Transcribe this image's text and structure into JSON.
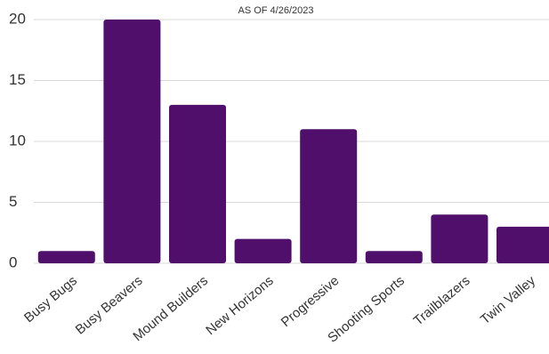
{
  "chart_data": {
    "type": "bar",
    "subtitle": "AS OF 4/26/2023",
    "categories": [
      "Busy Bugs",
      "Busy Beavers",
      "Mound Builders",
      "New Horizons",
      "Progressive",
      "Shooting Sports",
      "Trailblazers",
      "Twin Valley"
    ],
    "values": [
      1,
      20,
      13,
      2,
      11,
      1,
      4,
      3
    ],
    "color": "#4f0f6b",
    "ylim": [
      0,
      20
    ],
    "yticks": [
      0,
      5,
      10,
      15,
      20
    ],
    "grid": true
  }
}
